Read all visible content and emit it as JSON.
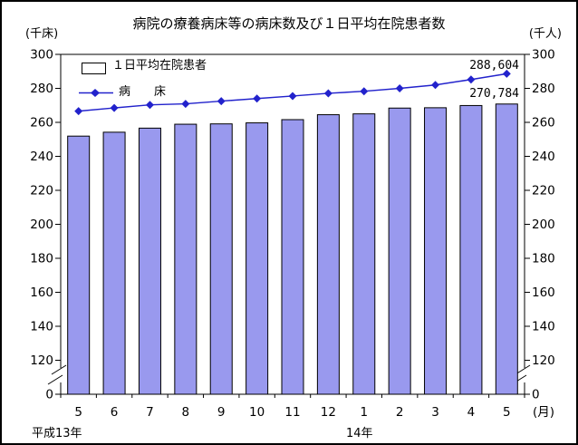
{
  "title": "病院の療養病床等の病床数及び１日平均在院患者数",
  "axis_unit_left": "(千床)",
  "axis_unit_right": "(千人)",
  "legend": {
    "bars_label": "１日平均在院患者",
    "line_label": "病　　床"
  },
  "colors": {
    "bar_fill": "#9999EE",
    "bar_border": "#000000",
    "line": "#2222CC",
    "axis": "#000000"
  },
  "chart_data": {
    "type": "bar",
    "note": "combined bar + line chart; values in thousands (千)",
    "categories": [
      "5",
      "6",
      "7",
      "8",
      "9",
      "10",
      "11",
      "12",
      "1",
      "2",
      "3",
      "4",
      "5"
    ],
    "x_unit_label": "(月)",
    "era_labels": [
      {
        "text": "平成13年"
      },
      {
        "text": "14年"
      }
    ],
    "series": [
      {
        "name": "１日平均在院患者",
        "type": "bar",
        "values": [
          251.9,
          254.2,
          256.6,
          258.9,
          259.1,
          259.7,
          261.6,
          264.5,
          265.0,
          268.4,
          268.6,
          269.9,
          270.784
        ],
        "last_point_label": "270,784"
      },
      {
        "name": "病床",
        "type": "line",
        "values": [
          266.6,
          268.5,
          270.3,
          270.9,
          272.5,
          274.0,
          275.5,
          277.1,
          278.3,
          280.0,
          282.0,
          285.2,
          288.604
        ],
        "last_point_label": "288,604"
      }
    ],
    "yticks": [
      300,
      280,
      260,
      240,
      220,
      200,
      180,
      160,
      140,
      120,
      0
    ],
    "ylim_displayed": [
      120,
      300
    ],
    "axis_break_above_zero": true,
    "grid": false,
    "legend_position": "top-left-inside"
  }
}
